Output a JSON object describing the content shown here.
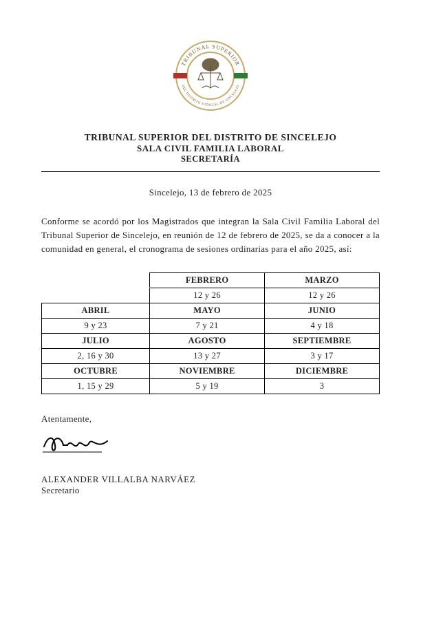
{
  "seal": {
    "outer_text_top": "TRIBUNAL SUPERIOR",
    "outer_text_bottom": "DEL DISTRITO JUDICIAL DE SINCELEJO",
    "ring_text_color": "#7a5a2a",
    "ring_fill": "#ffffff",
    "ring_stroke": "#c9a96a",
    "inner_circle_fill": "#ffffff",
    "bar_left_color": "#b6302a",
    "bar_right_color": "#2e7d32"
  },
  "header": {
    "line1": "TRIBUNAL SUPERIOR DEL DISTRITO DE SINCELEJO",
    "line2": "SALA CIVIL FAMILIA LABORAL",
    "line3": "SECRETARÍA"
  },
  "date_line": "Sincelejo, 13 de febrero de 2025",
  "intro_text": "Conforme se acordó por los Magistrados que integran la Sala Civil Familia Laboral del Tribunal Superior de Sincelejo, en reunión de 12 de febrero de 2025, se da a conocer a la comunidad en general, el cronograma de sesiones ordinarias para el año 2025, así:",
  "schedule": {
    "rows": [
      {
        "months": [
          "",
          "FEBRERO",
          "MARZO"
        ],
        "dates": [
          "",
          "12 y 26",
          "12 y 26"
        ]
      },
      {
        "months": [
          "ABRIL",
          "MAYO",
          "JUNIO"
        ],
        "dates": [
          "9 y 23",
          "7 y 21",
          "4 y 18"
        ]
      },
      {
        "months": [
          "JULIO",
          "AGOSTO",
          "SEPTIEMBRE"
        ],
        "dates": [
          "2, 16 y 30",
          "13 y 27",
          "3 y 17"
        ]
      },
      {
        "months": [
          "OCTUBRE",
          "NOVIEMBRE",
          "DICIEMBRE"
        ],
        "dates": [
          "1, 15 y 29",
          "5 y 19",
          "3"
        ]
      }
    ],
    "col_widths_pct": [
      32,
      34,
      34
    ],
    "border_color": "#000000",
    "header_fontweight": "bold"
  },
  "closing": "Atentamente,",
  "signer": {
    "name": "ALEXANDER VILLALBA NARVÁEZ",
    "role": "Secretario"
  }
}
